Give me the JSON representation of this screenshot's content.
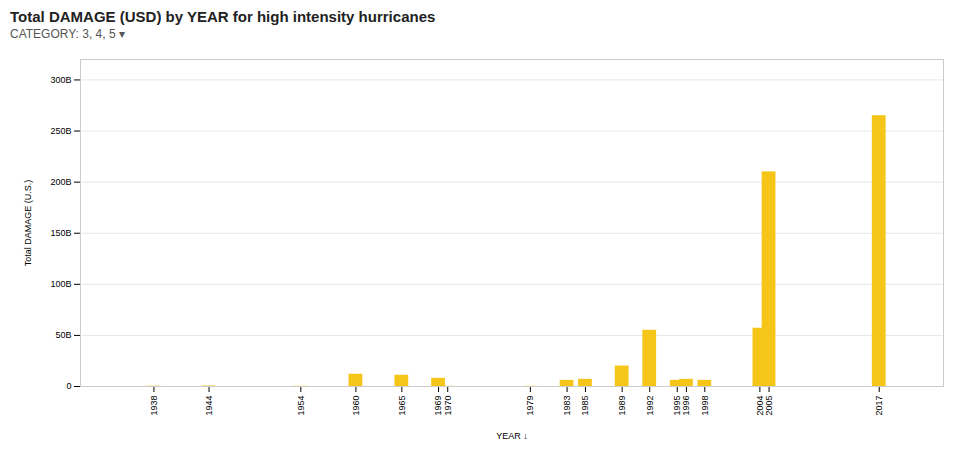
{
  "chart_data": {
    "type": "bar",
    "title": "Total DAMAGE (USD) by YEAR for high intensity hurricanes",
    "subtitle": "CATEGORY:  3, 4, 5  ▾",
    "x_label": "YEAR ↓",
    "y_label": "Total DAMAGE (U.S.)",
    "x": [
      1938,
      1944,
      1954,
      1960,
      1965,
      1969,
      1970,
      1979,
      1983,
      1985,
      1989,
      1992,
      1995,
      1996,
      1998,
      2004,
      2005,
      2017
    ],
    "values": [
      300000000.0,
      500000000.0,
      200000000.0,
      12000000000.0,
      11000000000.0,
      8000000000.0,
      200000000.0,
      200000000.0,
      6000000000.0,
      7000000000.0,
      20000000000.0,
      55000000000.0,
      6000000000.0,
      7000000000.0,
      6000000000.0,
      57000000000.0,
      210000000000.0,
      265000000000.0
    ],
    "color": "#F5C518",
    "xlim": [
      1930,
      2024
    ],
    "xticks": [
      1938,
      1944,
      1954,
      1960,
      1965,
      1969,
      1970,
      1979,
      1983,
      1985,
      1989,
      1992,
      1995,
      1996,
      1998,
      2004,
      2005,
      2017
    ],
    "ylim": [
      0,
      320000000000.0
    ],
    "yticks": [
      0,
      {
        "value": 50000000000.0,
        "label": "50B"
      },
      {
        "value": 100000000000.0,
        "label": "100B"
      },
      {
        "value": 150000000000.0,
        "label": "150B"
      },
      {
        "value": 200000000000.0,
        "label": "200B"
      },
      {
        "value": 250000000000.0,
        "label": "250B"
      },
      {
        "value": 300000000000.0,
        "label": "300B"
      }
    ],
    "grid": true
  }
}
